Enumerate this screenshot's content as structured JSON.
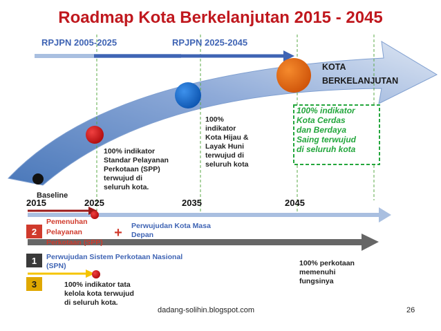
{
  "title": "Roadmap Kota Berkelanjutan 2015 - 2045",
  "rpjpn": {
    "first": "RPJPN 2005-2025",
    "second": "RPJPN 2025-2045"
  },
  "goal": {
    "line1": "KOTA",
    "line2": "BERKELANJUTAN"
  },
  "years": [
    "2015",
    "2025",
    "2035",
    "2045"
  ],
  "milestones": {
    "baseline": "Baseline",
    "m2025": [
      "100% indikator",
      "Standar Pelayanan",
      "Perkotaan (SPP)",
      "terwujud di",
      "seluruh kota."
    ],
    "m2035": [
      "100%",
      "indikator",
      "Kota Hijau &",
      "Layak Huni",
      "terwujud di",
      "seluruh kota"
    ],
    "m2045": [
      "100% indikator",
      "Kota Cerdas",
      "dan Berdaya",
      "Saing terwujud",
      "di seluruh kota"
    ]
  },
  "tracks": {
    "t2": {
      "num": "2",
      "text": [
        "Pemenuhan",
        "Pelayanan",
        "Perkotaan (SPP)"
      ],
      "plus": "+",
      "extra": [
        "Perwujudan Kota Masa",
        "Depan"
      ]
    },
    "t1": {
      "num": "1",
      "text": [
        "Perwujudan Sistem Perkotaan Nasional",
        "(SPN)"
      ],
      "result": [
        "100% perkotaan",
        "memenuhi",
        "fungsinya"
      ]
    },
    "t3": {
      "num": "3",
      "text": [
        "100% indikator tata",
        "kelola kota terwujud",
        "di seluruh kota."
      ]
    }
  },
  "footer": {
    "source": "dadang-solihin.blogspot.com",
    "page": "26"
  },
  "colors": {
    "title": "#c0181e",
    "rpjpn": "#3f64b4",
    "arrow_dark": "#5b86c2",
    "arrow_light": "#c9d6ea",
    "track_blue": "#a9bfe0",
    "track_red": "#9b1a1a",
    "track_gray": "#666666",
    "track_yellow": "#f5c400",
    "dot_2025": "#cc1416",
    "dot_2035": "#1a6fd0",
    "dot_2045": "#e2660e",
    "box_green": "#23a63c",
    "dashed_grid": "#5aa845",
    "num_2": "#d03a2c",
    "num_1": "#3a3a3a",
    "num_3": "#e0a800"
  }
}
